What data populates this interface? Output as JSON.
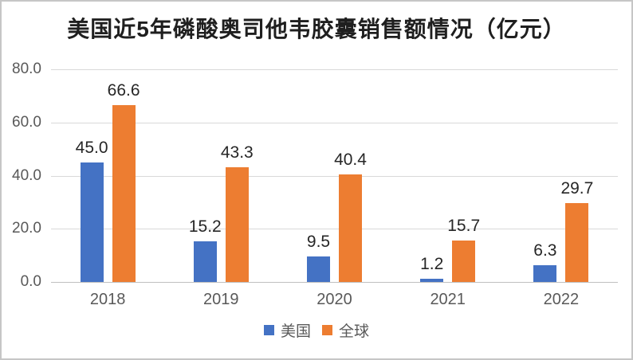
{
  "chart_data": {
    "type": "bar",
    "title": "美国近5年磷酸奥司他韦胶囊销售额情况（亿元）",
    "categories": [
      "2018",
      "2019",
      "2020",
      "2021",
      "2022"
    ],
    "series": [
      {
        "name": "美国",
        "color": "#4472c4",
        "values": [
          45.0,
          15.2,
          9.5,
          1.2,
          6.3
        ]
      },
      {
        "name": "全球",
        "color": "#ed7d31",
        "values": [
          66.6,
          43.3,
          40.4,
          15.7,
          29.7
        ]
      }
    ],
    "ylim": [
      0,
      80
    ],
    "ytick_step": 20,
    "ytick_labels": [
      "0.0",
      "20.0",
      "40.0",
      "60.0",
      "80.0"
    ],
    "value_label_decimals": 1,
    "grid": "horizontal",
    "legend_position": "bottom",
    "colors": {
      "gridline": "#d9d9d9",
      "axis_line": "#bfbfbf",
      "axis_text": "#595959",
      "value_label_text": "#262626",
      "title_text": "#1f1f1f",
      "frame_border": "#c6c6c6",
      "background": "#ffffff"
    }
  }
}
